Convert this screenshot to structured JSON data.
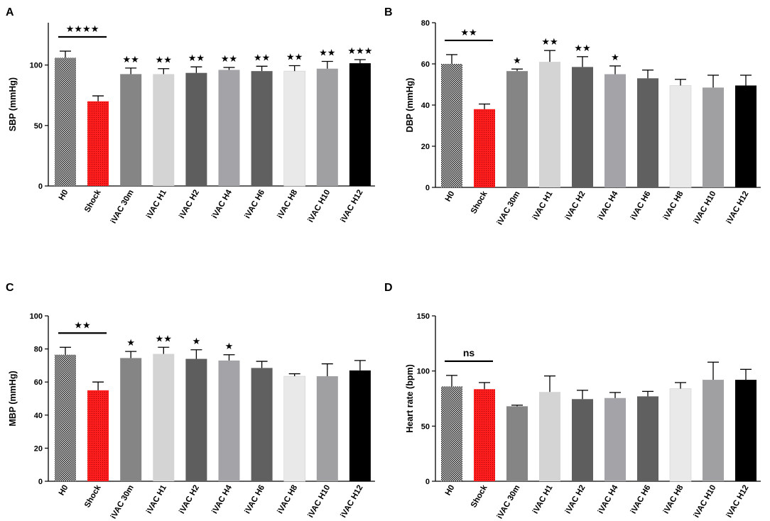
{
  "chart_data": [
    {
      "panel": "A",
      "type": "bar",
      "ylabel": "SBP (mmHg)",
      "ylim": [
        0,
        135
      ],
      "yticks": [
        0,
        50,
        100
      ],
      "categories": [
        "H0",
        "Shock",
        "iVAC 30m",
        "iVAC H1",
        "iVAC H2",
        "iVAC H4",
        "iVAC H6",
        "iVAC H8",
        "iVAC H10",
        "iVAC H12"
      ],
      "values": [
        106,
        70,
        92.5,
        92.5,
        93.5,
        96,
        95,
        95,
        97,
        101.5
      ],
      "errors": [
        5.5,
        4.5,
        5,
        4.5,
        5,
        2,
        4,
        4.5,
        6,
        3
      ],
      "significance": [
        "",
        "",
        "★★",
        "★★",
        "★★",
        "★★",
        "★★",
        "★★",
        "★★",
        "★★★"
      ],
      "comparison": {
        "from": 0,
        "to": 1,
        "label": "★★★★"
      }
    },
    {
      "panel": "B",
      "type": "bar",
      "ylabel": "DBP (mmHg)",
      "ylim": [
        0,
        80
      ],
      "yticks": [
        0,
        20,
        40,
        60,
        80
      ],
      "categories": [
        "H0",
        "Shock",
        "iVAC 30m",
        "iVAC H1",
        "iVAC H2",
        "iVAC H4",
        "iVAC H6",
        "iVAC H8",
        "iVAC H10",
        "iVAC H12"
      ],
      "values": [
        60,
        38,
        56.5,
        61,
        58.5,
        55,
        53,
        49.5,
        48.5,
        49.5
      ],
      "errors": [
        4.5,
        2.5,
        1,
        5.5,
        5,
        4,
        4,
        3,
        6,
        5
      ],
      "significance": [
        "",
        "",
        "★",
        "★★",
        "★★",
        "★",
        "",
        "",
        "",
        ""
      ],
      "comparison": {
        "from": 0,
        "to": 1,
        "label": "★★"
      }
    },
    {
      "panel": "C",
      "type": "bar",
      "ylabel": "MBP (mmHg)",
      "ylim": [
        0,
        100
      ],
      "yticks": [
        0,
        20,
        40,
        60,
        80,
        100
      ],
      "categories": [
        "H0",
        "Shock",
        "iVAC 30m",
        "iVAC H1",
        "iVAC H2",
        "iVAC H4",
        "iVAC H6",
        "iVAC H8",
        "iVAC H10",
        "iVAC H12"
      ],
      "values": [
        76.5,
        55,
        74.5,
        77,
        74,
        73,
        68.5,
        63.5,
        63.5,
        67
      ],
      "errors": [
        4.5,
        5,
        4,
        4,
        5.5,
        3.5,
        4,
        1.5,
        7.5,
        6
      ],
      "significance": [
        "",
        "",
        "★",
        "★★",
        "★",
        "★",
        "",
        "",
        "",
        ""
      ],
      "comparison": {
        "from": 0,
        "to": 1,
        "label": "★★"
      }
    },
    {
      "panel": "D",
      "type": "bar",
      "ylabel": "Heart rate (bpm)",
      "ylim": [
        0,
        150
      ],
      "yticks": [
        0,
        50,
        100,
        150
      ],
      "categories": [
        "H0",
        "Shock",
        "iVAC 30m",
        "iVAC H1",
        "iVAC H2",
        "iVAC H4",
        "iVAC H6",
        "iVAC H8",
        "iVAC H10",
        "iVAC H12"
      ],
      "values": [
        86,
        83.5,
        68,
        81,
        74.5,
        75.5,
        77,
        84,
        92,
        92
      ],
      "errors": [
        10,
        6,
        1,
        14.5,
        8,
        5,
        4.5,
        5.5,
        16,
        9.5
      ],
      "significance": [
        "",
        "",
        "",
        "",
        "",
        "",
        "",
        "",
        "",
        ""
      ],
      "comparison": {
        "from": 0,
        "to": 1,
        "label": "ns"
      }
    }
  ],
  "colors": {
    "H0": "#3a3a3a",
    "Shock": "#ee1c1c",
    "iVAC 30m": "#858585",
    "iVAC H1": "#d4d4d4",
    "iVAC H2": "#5e5e5e",
    "iVAC H4": "#a4a4a8",
    "iVAC H6": "#606060",
    "iVAC H8": "#e9e9e9",
    "iVAC H10": "#a0a0a3",
    "iVAC H12": "#000000"
  }
}
